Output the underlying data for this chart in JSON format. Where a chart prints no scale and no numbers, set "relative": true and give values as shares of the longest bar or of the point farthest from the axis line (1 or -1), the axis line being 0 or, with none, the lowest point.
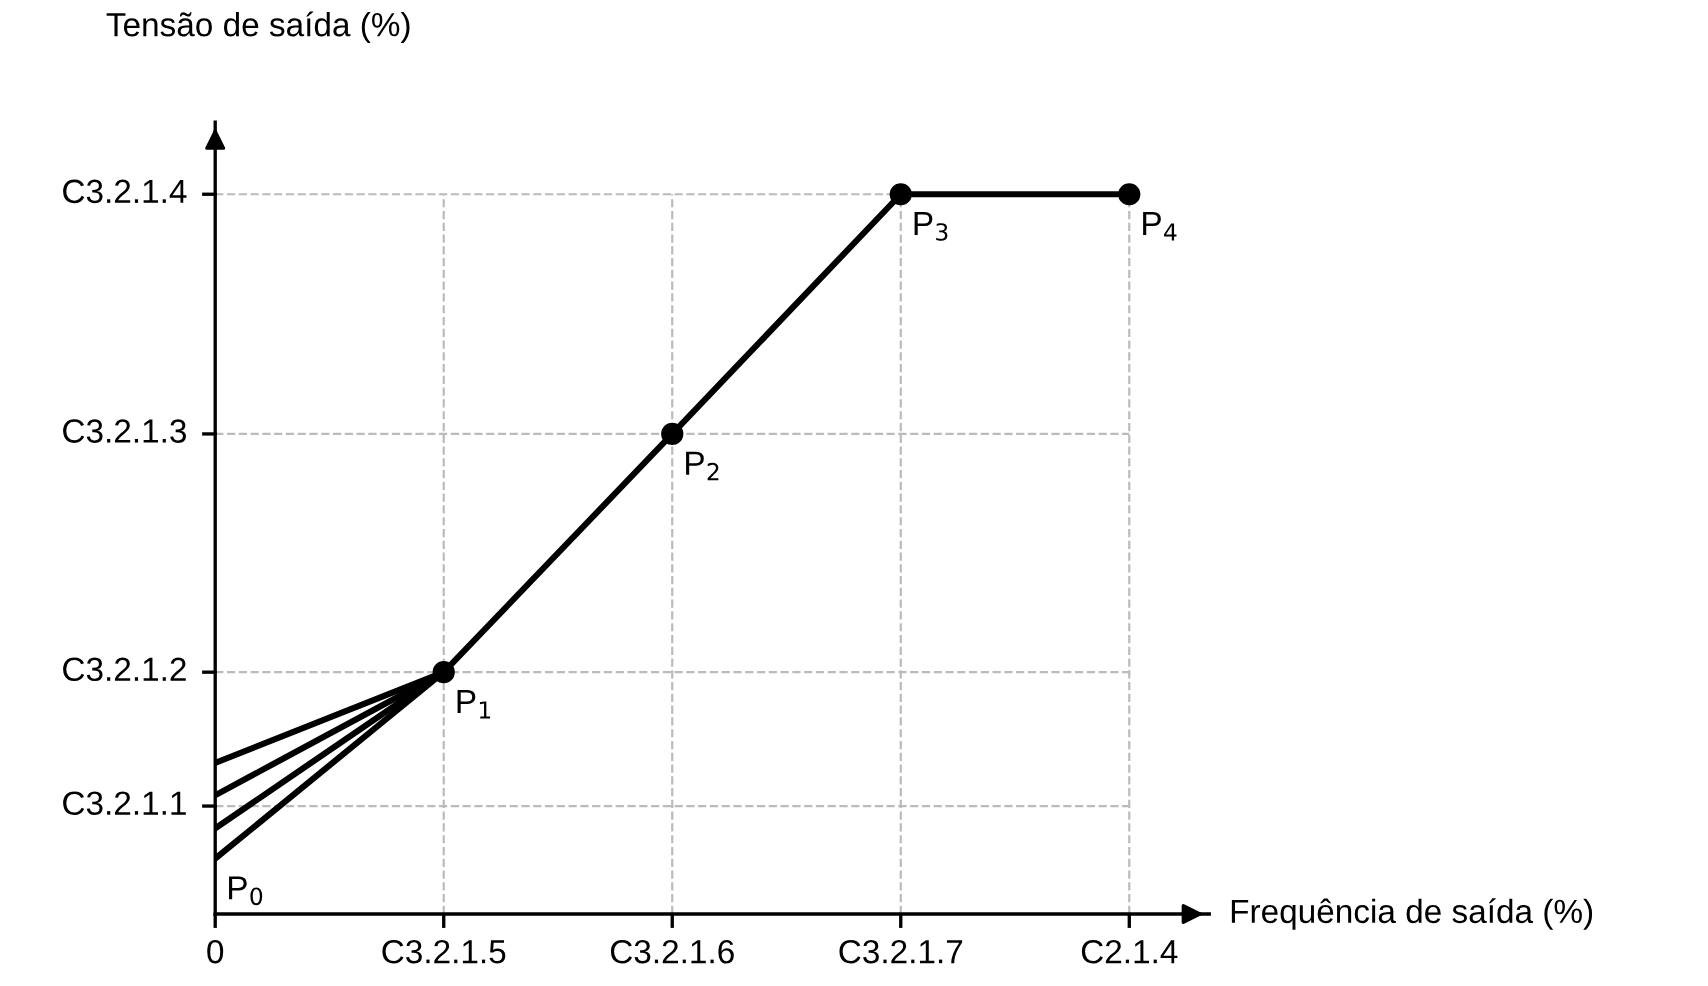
{
  "chart_data": {
    "type": "line",
    "relative": true,
    "xlabel": "Frequência de saída (%)",
    "ylabel": "Tensão de saída (%)",
    "categories": [
      "0",
      "C3.2.1.5",
      "C3.2.1.6",
      "C3.2.1.7",
      "C2.1.4"
    ],
    "ylim": [
      0,
      1.1
    ],
    "ref_lines": [
      {
        "axis": "y",
        "value": 0.15,
        "label": "C3.2.1.1",
        "color": "#bbbbbb",
        "line_style": "dashed"
      },
      {
        "axis": "y",
        "value": 0.336,
        "label": "C3.2.1.2",
        "color": "#bbbbbb",
        "line_style": "dashed"
      },
      {
        "axis": "y",
        "value": 0.667,
        "label": "C3.2.1.3",
        "color": "#bbbbbb",
        "line_style": "dashed"
      },
      {
        "axis": "y",
        "value": 1,
        "label": "C3.2.1.4",
        "color": "#bbbbbb",
        "line_style": "dashed"
      }
    ],
    "grid": "x",
    "line_style": "solid",
    "series": [
      {
        "color": "#000000",
        "marker": "none",
        "values": [
          0.21,
          0.336,
          null,
          null,
          null
        ]
      },
      {
        "color": "#000000",
        "marker": "none",
        "values": [
          0.165,
          0.336,
          null,
          null,
          null
        ]
      },
      {
        "color": "#000000",
        "marker": "none",
        "values": [
          0.119,
          0.336,
          null,
          null,
          null
        ]
      },
      {
        "color": "#000000",
        "marker": "none",
        "values": [
          0.077,
          0.336,
          null,
          null,
          null
        ]
      },
      {
        "color": "#000000",
        "marker": "circle",
        "values": [
          null,
          0.336,
          0.667,
          1,
          1
        ]
      }
    ],
    "annotations": [
      {
        "text": "P$_{0}$",
        "x": "0",
        "y": 0.077
      },
      {
        "text": "P$_{1}$",
        "x": "C3.2.1.5",
        "y": 0.336
      },
      {
        "text": "P$_{2}$",
        "x": "C3.2.1.6",
        "y": 0.667
      },
      {
        "text": "P$_{3}$",
        "x": "C3.2.1.7",
        "y": 1
      },
      {
        "text": "P$_{4}$",
        "x": "C2.1.4",
        "y": 1
      }
    ]
  }
}
